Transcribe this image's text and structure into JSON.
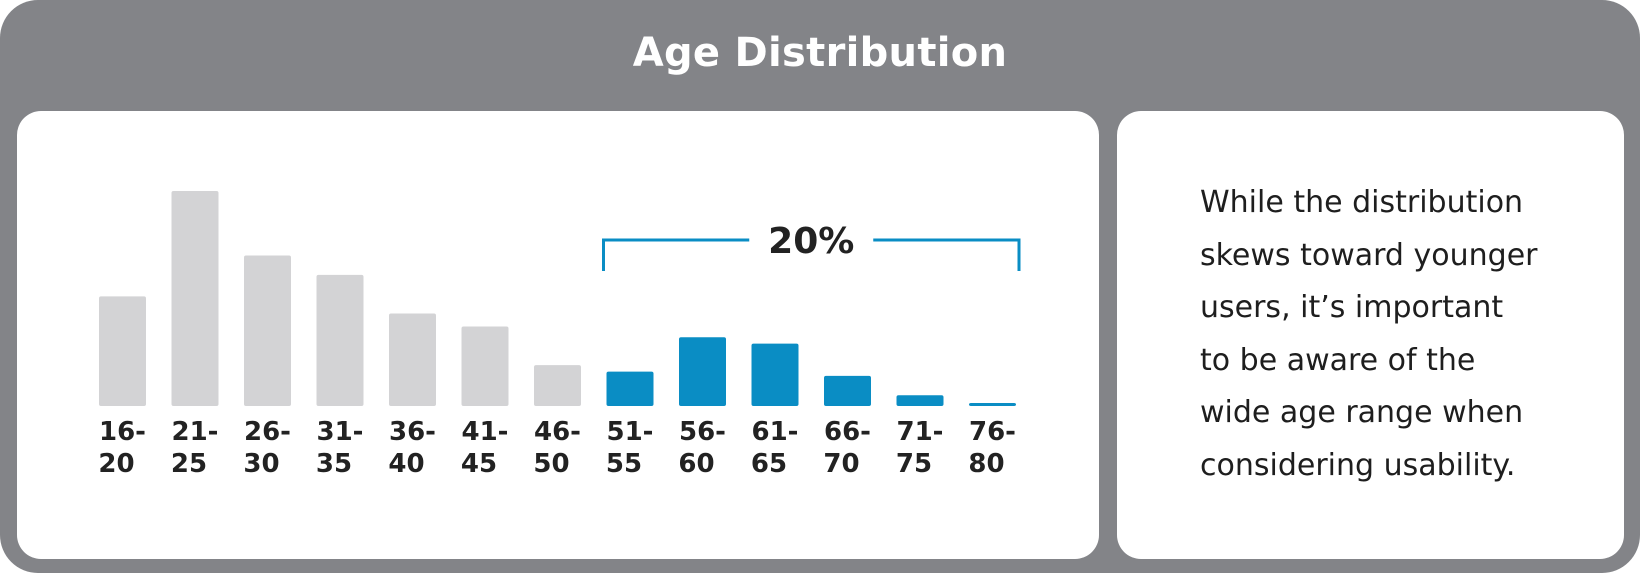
{
  "title": "Age Distribution",
  "chart_data": {
    "type": "bar",
    "title": "Age Distribution",
    "xlabel": "",
    "ylabel": "",
    "ylim": [
      0,
      100
    ],
    "grid": false,
    "categories": [
      "16-20",
      "21-25",
      "26-30",
      "31-35",
      "36-40",
      "41-45",
      "46-50",
      "51-55",
      "56-60",
      "61-65",
      "66-70",
      "71-75",
      "76-80"
    ],
    "values": [
      51,
      100,
      70,
      61,
      43,
      37,
      19,
      16,
      32,
      29,
      14,
      5,
      1
    ],
    "highlight": {
      "from_index": 7,
      "to_index": 12,
      "label": "20%"
    },
    "colors": {
      "default": "#D3D3D5",
      "highlight": "#0A8DC4",
      "bracket": "#0A8DC4"
    }
  },
  "blurb_lines": [
    "While the distribution",
    "skews toward younger",
    "users, it’s important",
    "to be aware of the",
    "wide age range when",
    "considering usability."
  ],
  "colors": {
    "frame": "#838488",
    "panel": "#FFFFFF",
    "text": "#1E1E1E"
  }
}
